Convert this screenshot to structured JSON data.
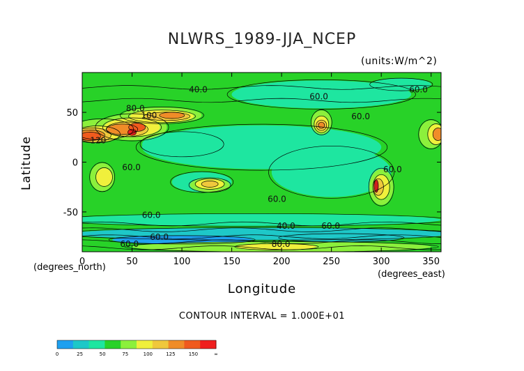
{
  "chart_data": {
    "type": "heatmap",
    "title": "NLWRS_1989-JJA_NCEP",
    "units": "(units:W/m^2)",
    "xlabel": "Longitude",
    "ylabel": "Latitude",
    "x_unit": "(degrees_east)",
    "y_unit": "(degrees_north)",
    "xlim": [
      0,
      360
    ],
    "ylim": [
      -90,
      90
    ],
    "x_ticks": [
      0,
      50,
      100,
      150,
      200,
      250,
      300,
      350
    ],
    "y_ticks": [
      50,
      0,
      -50
    ],
    "contour_interval": "CONTOUR INTERVAL = 1.000E+01",
    "contour_labels": [
      {
        "text": "40.0",
        "lon": 107,
        "lat": 70
      },
      {
        "text": "60.0",
        "lon": 228,
        "lat": 63
      },
      {
        "text": "80.0",
        "lon": 44,
        "lat": 51
      },
      {
        "text": "100",
        "lon": 59,
        "lat": 44
      },
      {
        "text": "120",
        "lon": 8,
        "lat": 19
      },
      {
        "text": "60.0",
        "lon": 270,
        "lat": 43
      },
      {
        "text": "60.0",
        "lon": 40,
        "lat": -8
      },
      {
        "text": "60.0",
        "lon": 302,
        "lat": -10
      },
      {
        "text": "60.0",
        "lon": 186,
        "lat": -40
      },
      {
        "text": "60.0",
        "lon": 60,
        "lat": -56
      },
      {
        "text": "40.0",
        "lon": 195,
        "lat": -67
      },
      {
        "text": "60.0",
        "lon": 240,
        "lat": -67
      },
      {
        "text": "60.0",
        "lon": 38,
        "lat": -85
      },
      {
        "text": "80.0",
        "lon": 190,
        "lat": -85
      },
      {
        "text": "60.0",
        "lon": 328,
        "lat": 70
      },
      {
        "text": "60.0",
        "lon": 68,
        "lat": -78
      }
    ],
    "colorbar": {
      "ticks": [
        "0",
        "25",
        "50",
        "75",
        "100",
        "125",
        "150",
        "∞"
      ],
      "colors": [
        "#1ea0f0",
        "#1ec8c8",
        "#1ee6a0",
        "#28d228",
        "#8cf03c",
        "#f0f03c",
        "#f0c83c",
        "#f08c28",
        "#f05a1e",
        "#f01e1e"
      ]
    },
    "field_colors": {
      "low": "#1ee6a0",
      "mid": "#28d228",
      "cyan": "#1ec8c8",
      "blue": "#1ea0f0",
      "light_green": "#8cf03c",
      "yellow": "#f0f03c",
      "gold": "#f0c83c",
      "orange": "#f08c28",
      "red_orange": "#f05a1e",
      "red": "#f01e1e",
      "dark_red": "#d21e1e"
    }
  }
}
